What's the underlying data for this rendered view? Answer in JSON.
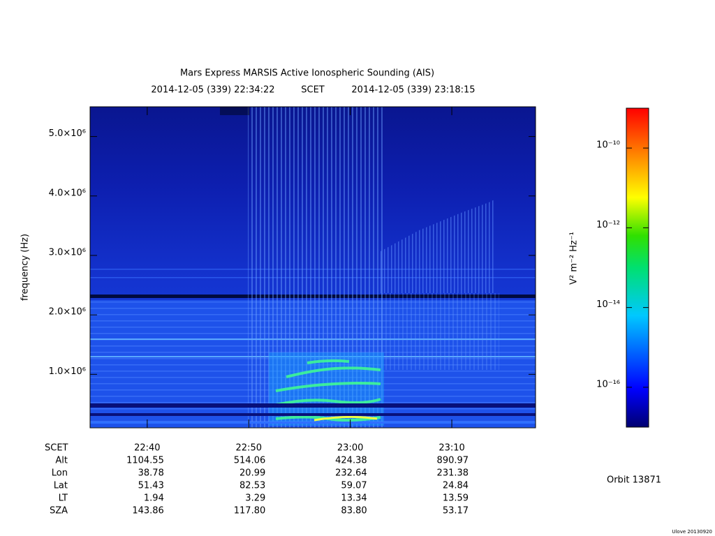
{
  "chart_data": {
    "type": "spectrogram",
    "title": "Mars Express MARSIS Active Ionospheric Sounding (AIS)",
    "time_start": "2014-12-05 (339) 22:34:22",
    "time_system": "SCET",
    "time_end": "2014-12-05 (339) 23:18:15",
    "ylabel": "frequency (Hz)",
    "ylim": [
      100000,
      5500000
    ],
    "yticks": [
      {
        "value": 1000000,
        "label": "1.0×10⁶"
      },
      {
        "value": 2000000,
        "label": "2.0×10⁶"
      },
      {
        "value": 3000000,
        "label": "3.0×10⁶"
      },
      {
        "value": 4000000,
        "label": "4.0×10⁶"
      },
      {
        "value": 5000000,
        "label": "5.0×10⁶"
      }
    ],
    "xlim": [
      1354.37,
      1398.25
    ],
    "xticks": [
      {
        "value": 1360,
        "label": "22:40"
      },
      {
        "value": 1370,
        "label": "22:50"
      },
      {
        "value": 1380,
        "label": "23:00"
      },
      {
        "value": 1390,
        "label": "23:10"
      }
    ],
    "colorbar": {
      "label": "V² m⁻² Hz⁻¹",
      "log": true,
      "zlim": [
        1e-17,
        1e-09
      ],
      "ticks": [
        {
          "value": 1e-10,
          "label": "10⁻¹⁰"
        },
        {
          "value": 1e-12,
          "label": "10⁻¹²"
        },
        {
          "value": 1e-14,
          "label": "10⁻¹⁴"
        },
        {
          "value": 1e-16,
          "label": "10⁻¹⁶"
        }
      ]
    }
  },
  "ephemeris": {
    "row_labels": [
      "SCET",
      "Alt",
      "Lon",
      "Lat",
      "LT",
      "SZA"
    ],
    "rows": [
      [
        "1104.55",
        "514.06",
        "424.38",
        "890.97"
      ],
      [
        "38.78",
        "20.99",
        "232.64",
        "231.38"
      ],
      [
        "51.43",
        "82.53",
        "59.07",
        "24.84"
      ],
      [
        "1.94",
        "3.29",
        "13.34",
        "13.59"
      ],
      [
        "143.86",
        "117.80",
        "83.80",
        "53.17"
      ]
    ]
  },
  "orbit": "Orbit 13871",
  "footer": "Ulove 20130920"
}
